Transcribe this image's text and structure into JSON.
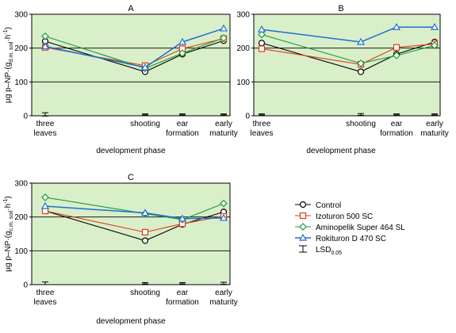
{
  "x_axis_label": "development phase",
  "y_axis_label_prefix": "µg p–NP·(g",
  "y_axis_label_sub_A": "d.m. soil",
  "y_axis_label_sub_C": "c.m. soil",
  "y_axis_label_suffix": "·h",
  "y_axis_label_sup": "-1",
  "y_axis_label_close": ")",
  "lsd_sub": "0.05",
  "legend_title": "",
  "legend": [
    {
      "name": "Control",
      "color": "#000000",
      "marker": "circle"
    },
    {
      "name": "Izoturon 500 SC",
      "color": "#e03a1e",
      "marker": "square"
    },
    {
      "name": "Aminopelik Super 464 SL",
      "color": "#1c9a3c",
      "marker": "diamond"
    },
    {
      "name": "Rokituron D 470 SC",
      "color": "#1f6fd1",
      "marker": "triangle"
    },
    {
      "name": "LSD",
      "color": "#000000",
      "marker": "errorbar"
    }
  ],
  "colors": {
    "panel_bg": "#d9efc9",
    "grid": "#000000"
  },
  "chart_data": [
    {
      "type": "line",
      "title": "A",
      "categories": [
        "three leaves",
        "shooting",
        "ear formation",
        "early maturity"
      ],
      "ylim": [
        0,
        300
      ],
      "yticks": [
        0,
        100,
        200,
        300
      ],
      "grid": "horizontal at 100 and 200",
      "series": [
        {
          "name": "Control",
          "values": [
            220,
            130,
            182,
            222
          ]
        },
        {
          "name": "Izoturon 500 SC",
          "values": [
            202,
            148,
            198,
            228
          ]
        },
        {
          "name": "Aminopelik Super 464 SL",
          "values": [
            235,
            140,
            185,
            230
          ]
        },
        {
          "name": "Rokituron D 470 SC",
          "values": [
            205,
            143,
            218,
            258
          ]
        }
      ],
      "lsd": [
        10,
        3,
        3,
        3
      ]
    },
    {
      "type": "line",
      "title": "B",
      "categories": [
        "three leaves",
        "shooting",
        "ear formation",
        "early maturity"
      ],
      "ylim": [
        0,
        300
      ],
      "yticks": [
        0,
        100,
        200,
        300
      ],
      "grid": "horizontal at 100 and 200",
      "series": [
        {
          "name": "Control",
          "values": [
            215,
            130,
            182,
            218
          ]
        },
        {
          "name": "Izoturon 500 SC",
          "values": [
            198,
            152,
            202,
            212
          ]
        },
        {
          "name": "Aminopelik Super 464 SL",
          "values": [
            240,
            155,
            178,
            208
          ]
        },
        {
          "name": "Rokituron D 470 SC",
          "values": [
            255,
            218,
            262,
            262
          ]
        }
      ],
      "lsd": [
        3,
        5,
        3,
        3
      ]
    },
    {
      "type": "line",
      "title": "C",
      "categories": [
        "three leaves",
        "shooting",
        "ear formation",
        "early maturity"
      ],
      "ylim": [
        0,
        300
      ],
      "yticks": [
        0,
        100,
        200,
        300
      ],
      "grid": "horizontal at 100 and 200",
      "series": [
        {
          "name": "Control",
          "values": [
            218,
            130,
            178,
            215
          ]
        },
        {
          "name": "Izoturon 500 SC",
          "values": [
            218,
            155,
            180,
            202
          ]
        },
        {
          "name": "Aminopelik Super 464 SL",
          "values": [
            258,
            210,
            192,
            240
          ]
        },
        {
          "name": "Rokituron D 470 SC",
          "values": [
            232,
            212,
            195,
            197
          ]
        }
      ],
      "lsd": [
        8,
        4,
        4,
        6
      ]
    }
  ]
}
